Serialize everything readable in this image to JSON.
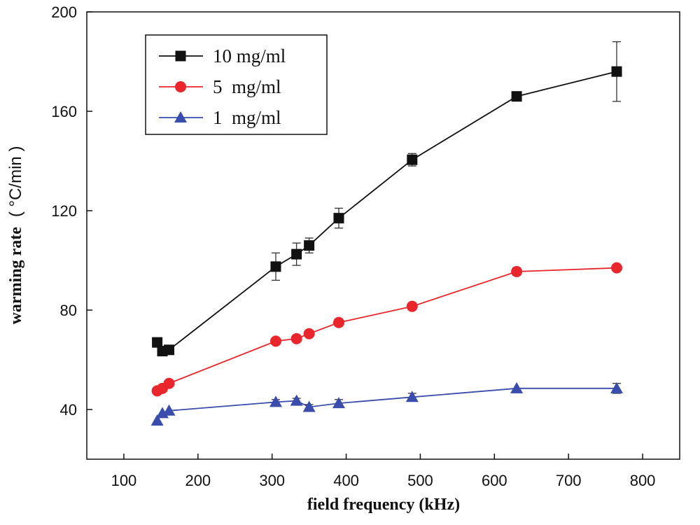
{
  "chart_data": {
    "type": "line",
    "title": "",
    "xlabel": "field frequency (kHz)",
    "ylabel_main": "warming rate",
    "ylabel_unit": "( °C/min )",
    "xlim": [
      50,
      850
    ],
    "ylim": [
      20,
      200
    ],
    "xticks": [
      100,
      200,
      300,
      400,
      500,
      600,
      700,
      800
    ],
    "yticks": [
      40,
      80,
      120,
      160,
      200
    ],
    "legend_position": "top-left",
    "series": [
      {
        "name": "10 mg/ml",
        "color": "#111111",
        "marker": "square",
        "x": [
          145,
          152,
          161,
          305,
          333,
          350,
          390,
          489,
          630,
          765
        ],
        "y": [
          67,
          63.5,
          64,
          97.5,
          102.5,
          106,
          117,
          140.5,
          166,
          176
        ],
        "error": [
          0,
          0,
          0,
          5.5,
          4.5,
          3,
          4,
          2.5,
          0,
          12
        ]
      },
      {
        "name": "5  mg/ml",
        "color": "#e8262b",
        "marker": "circle",
        "x": [
          145,
          152,
          161,
          305,
          333,
          350,
          390,
          489,
          630,
          765
        ],
        "y": [
          47.5,
          48.5,
          50.5,
          67.5,
          68.5,
          70.5,
          75,
          81.5,
          95.5,
          97
        ],
        "error": [
          0,
          0,
          0,
          0,
          0,
          0,
          1.5,
          0,
          1.5,
          0
        ]
      },
      {
        "name": "1  mg/ml",
        "color": "#3a4dad",
        "marker": "triangle",
        "x": [
          145,
          152,
          161,
          305,
          333,
          350,
          390,
          489,
          630,
          765
        ],
        "y": [
          35.5,
          38.5,
          39.5,
          43,
          43.5,
          41,
          42.5,
          45,
          48.5,
          48.5
        ],
        "error": [
          0,
          0,
          0,
          1,
          1,
          1,
          1.5,
          1.5,
          0,
          2
        ]
      }
    ]
  }
}
